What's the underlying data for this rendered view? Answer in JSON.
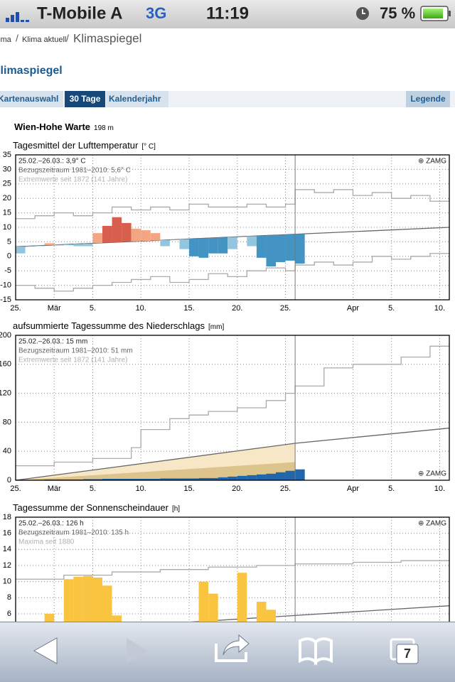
{
  "status": {
    "carrier": "T-Mobile A",
    "network": "3G",
    "time": "11:19",
    "battery": "75 %"
  },
  "breadcrumb": {
    "items": [
      "ima",
      "Klima aktuell",
      "Klimaspiegel"
    ],
    "separator": "/"
  },
  "page_title": "Klimaspiegel",
  "tabs": [
    "Kartenauswahl",
    "30 Tage",
    "Kalenderjahr"
  ],
  "legend_button": "Legende",
  "station": {
    "name": "Wien-Hohe Warte",
    "elevation": "198 m"
  },
  "tab_count": 7,
  "chart_data": [
    {
      "type": "bar",
      "title": "Tagesmittel der Lufttemperatur",
      "unit": "[° C]",
      "notes": [
        "25.02.–26.03.: 3,9° C",
        "Bezugszeitraum 1981–2010: 5,6° C",
        "Extremwerte seit 1872 (141 Jahre)"
      ],
      "credit": "⊕ ZAMG",
      "credit_corner": "top-right",
      "xlim": [
        0,
        45
      ],
      "ylim": [
        -15,
        35
      ],
      "yticks": [
        -15,
        -10,
        -5,
        0,
        5,
        10,
        15,
        20,
        25,
        30,
        35
      ],
      "xticks": [
        {
          "value": 0,
          "label": "25."
        },
        {
          "value": 4,
          "label": "Mär"
        },
        {
          "value": 8,
          "label": "5."
        },
        {
          "value": 13,
          "label": "10."
        },
        {
          "value": 18,
          "label": "15."
        },
        {
          "value": 23,
          "label": "20."
        },
        {
          "value": 28,
          "label": "25."
        },
        {
          "value": 35,
          "label": "Apr"
        },
        {
          "value": 39,
          "label": "5."
        },
        {
          "value": 44,
          "label": "10."
        }
      ],
      "marker": 29,
      "grid": true,
      "series": [
        {
          "type": "step",
          "color": "#aaaaaa",
          "x": [
            0,
            2,
            4,
            6,
            8,
            10,
            12,
            14,
            16,
            18,
            20,
            22,
            24,
            26,
            28,
            29,
            31,
            33,
            35,
            37,
            39,
            41,
            43,
            45
          ],
          "values": [
            13,
            14,
            15,
            14,
            15,
            17,
            16,
            17,
            16,
            18,
            17,
            17,
            18,
            17,
            18,
            23,
            22,
            23,
            21,
            22,
            20,
            21,
            19,
            20
          ]
        },
        {
          "type": "step",
          "color": "#aaaaaa",
          "x": [
            0,
            2,
            4,
            6,
            8,
            10,
            12,
            14,
            16,
            18,
            20,
            22,
            24,
            26,
            28,
            29,
            31,
            33,
            35,
            37,
            39,
            41,
            43,
            45
          ],
          "values": [
            -10,
            -11,
            -12,
            -11,
            -10,
            -9,
            -8,
            -7,
            -9,
            -8,
            -6,
            -7,
            -5,
            -4,
            -5,
            -3,
            -2,
            -3,
            -2,
            0,
            -1,
            0,
            1,
            1
          ]
        },
        {
          "type": "line",
          "color": "#666666",
          "x": [
            0,
            45
          ],
          "values": [
            3.3,
            10
          ]
        },
        {
          "type": "bar",
          "base": "line",
          "x": [
            0,
            1,
            2,
            3,
            4,
            5,
            6,
            7,
            8,
            9,
            10,
            11,
            12,
            13,
            14,
            15,
            16,
            17,
            18,
            19,
            20,
            21,
            22,
            23,
            24,
            25,
            26,
            27,
            28,
            29
          ],
          "values": [
            1,
            3.5,
            3.5,
            4.5,
            3.8,
            3.8,
            3.5,
            3.5,
            8,
            10.5,
            13.5,
            11.5,
            9.5,
            9,
            8,
            3.5,
            5.8,
            2.5,
            0,
            -0.5,
            1,
            1,
            2.5,
            6.8,
            3.5,
            -0.5,
            -3.5,
            -2,
            -1.5,
            -2.5
          ],
          "colors": [
            "#92c5de",
            "#92c5de",
            "#92c5de",
            "#f4a582",
            "#92c5de",
            "#92c5de",
            "#92c5de",
            "#92c5de",
            "#f4a582",
            "#d6604d",
            "#d6604d",
            "#d6604d",
            "#f4a582",
            "#f4a582",
            "#f4a582",
            "#92c5de",
            "#92c5de",
            "#92c5de",
            "#4393c3",
            "#4393c3",
            "#4393c3",
            "#4393c3",
            "#92c5de",
            "#92c5de",
            "#92c5de",
            "#4393c3",
            "#4393c3",
            "#4393c3",
            "#4393c3",
            "#4393c3"
          ]
        }
      ]
    },
    {
      "type": "bar",
      "title": "aufsummierte Tagessumme des Niederschlags",
      "unit": "[mm]",
      "notes": [
        "25.02.–26.03.: 15 mm",
        "Bezugszeitraum 1981–2010: 51 mm",
        "Extremwerte seit 1872 (141 Jahre)"
      ],
      "credit": "⊕ ZAMG",
      "credit_corner": "bottom-right",
      "xlim": [
        0,
        45
      ],
      "ylim": [
        0,
        200
      ],
      "yticks": [
        0,
        40,
        80,
        120,
        160,
        200
      ],
      "xticks": [
        {
          "value": 0,
          "label": "25."
        },
        {
          "value": 4,
          "label": "Mär"
        },
        {
          "value": 8,
          "label": "5."
        },
        {
          "value": 13,
          "label": "10."
        },
        {
          "value": 18,
          "label": "15."
        },
        {
          "value": 23,
          "label": "20."
        },
        {
          "value": 28,
          "label": "25."
        },
        {
          "value": 35,
          "label": "Apr"
        },
        {
          "value": 39,
          "label": "5."
        },
        {
          "value": 44,
          "label": "10."
        }
      ],
      "marker": 29,
      "grid": true,
      "series": [
        {
          "type": "area",
          "color": "#f7e7c6",
          "x": [
            0,
            29
          ],
          "values": [
            0,
            51
          ]
        },
        {
          "type": "area",
          "color": "#ddc48c",
          "x": [
            0,
            29
          ],
          "values": [
            0,
            25
          ]
        },
        {
          "type": "step",
          "color": "#aaaaaa",
          "x": [
            0,
            4,
            8,
            12,
            13,
            16,
            18,
            20,
            23,
            26,
            28,
            29,
            32,
            35,
            40,
            43,
            45
          ],
          "values": [
            20,
            25,
            30,
            45,
            70,
            85,
            90,
            95,
            100,
            110,
            120,
            130,
            155,
            160,
            170,
            185,
            190
          ]
        },
        {
          "type": "line",
          "color": "#666666",
          "x": [
            0,
            29,
            45
          ],
          "values": [
            0,
            51,
            72
          ]
        },
        {
          "type": "bar",
          "color": "#2166ac",
          "x": [
            0,
            1,
            2,
            3,
            4,
            5,
            6,
            7,
            8,
            9,
            10,
            11,
            12,
            13,
            14,
            15,
            16,
            17,
            18,
            19,
            20,
            21,
            22,
            23,
            24,
            25,
            26,
            27,
            28,
            29
          ],
          "values": [
            0,
            0,
            0.5,
            1,
            1,
            1,
            1,
            1.5,
            1.5,
            2,
            2,
            2,
            2,
            2,
            2,
            2.5,
            2.5,
            2.5,
            2.5,
            3,
            3,
            4,
            5,
            6,
            7,
            8,
            9,
            11,
            13,
            15
          ]
        }
      ]
    },
    {
      "type": "bar",
      "title": "Tagessumme der Sonnenscheindauer",
      "unit": "[h]",
      "notes": [
        "25.02.–26.03.: 126 h",
        "Bezugszeitraum 1981–2010: 135 h",
        "Maxima seit 1880"
      ],
      "credit": "⊕ ZAMG",
      "credit_corner": "top-right",
      "xlim": [
        0,
        45
      ],
      "ylim": [
        0,
        18
      ],
      "yticks": [
        6,
        8,
        10,
        12,
        14,
        16,
        18
      ],
      "xticks": [
        {
          "value": 0,
          "label": "25."
        },
        {
          "value": 4,
          "label": "Mär"
        },
        {
          "value": 8,
          "label": "5."
        },
        {
          "value": 13,
          "label": "10."
        },
        {
          "value": 18,
          "label": "15."
        },
        {
          "value": 23,
          "label": "20."
        },
        {
          "value": 28,
          "label": "25."
        },
        {
          "value": 35,
          "label": "Apr"
        },
        {
          "value": 39,
          "label": "5."
        },
        {
          "value": 44,
          "label": "10."
        }
      ],
      "marker": 29,
      "grid": true,
      "series": [
        {
          "type": "step",
          "color": "#aaaaaa",
          "x": [
            0,
            5,
            10,
            15,
            20,
            25,
            29,
            35,
            40,
            45
          ],
          "values": [
            10.3,
            10.8,
            11.2,
            11.5,
            11.8,
            12,
            12.2,
            12.4,
            12.6,
            12.8
          ]
        },
        {
          "type": "line",
          "color": "#666666",
          "x": [
            0,
            45
          ],
          "values": [
            3.6,
            7
          ]
        },
        {
          "type": "bar",
          "color": "#f9c440",
          "x": [
            0,
            1,
            2,
            3,
            4,
            5,
            6,
            7,
            8,
            9,
            10,
            11,
            12,
            13,
            14,
            15,
            16,
            17,
            18,
            19,
            20,
            21,
            22,
            23,
            24,
            25,
            26,
            27,
            28,
            29
          ],
          "values": [
            null,
            null,
            null,
            6,
            null,
            10.3,
            10.6,
            10.7,
            10.5,
            9.5,
            5.8,
            null,
            null,
            null,
            null,
            null,
            null,
            null,
            null,
            10,
            8.5,
            null,
            null,
            11.1,
            null,
            7.5,
            6.5,
            null,
            null,
            null
          ]
        }
      ]
    }
  ]
}
